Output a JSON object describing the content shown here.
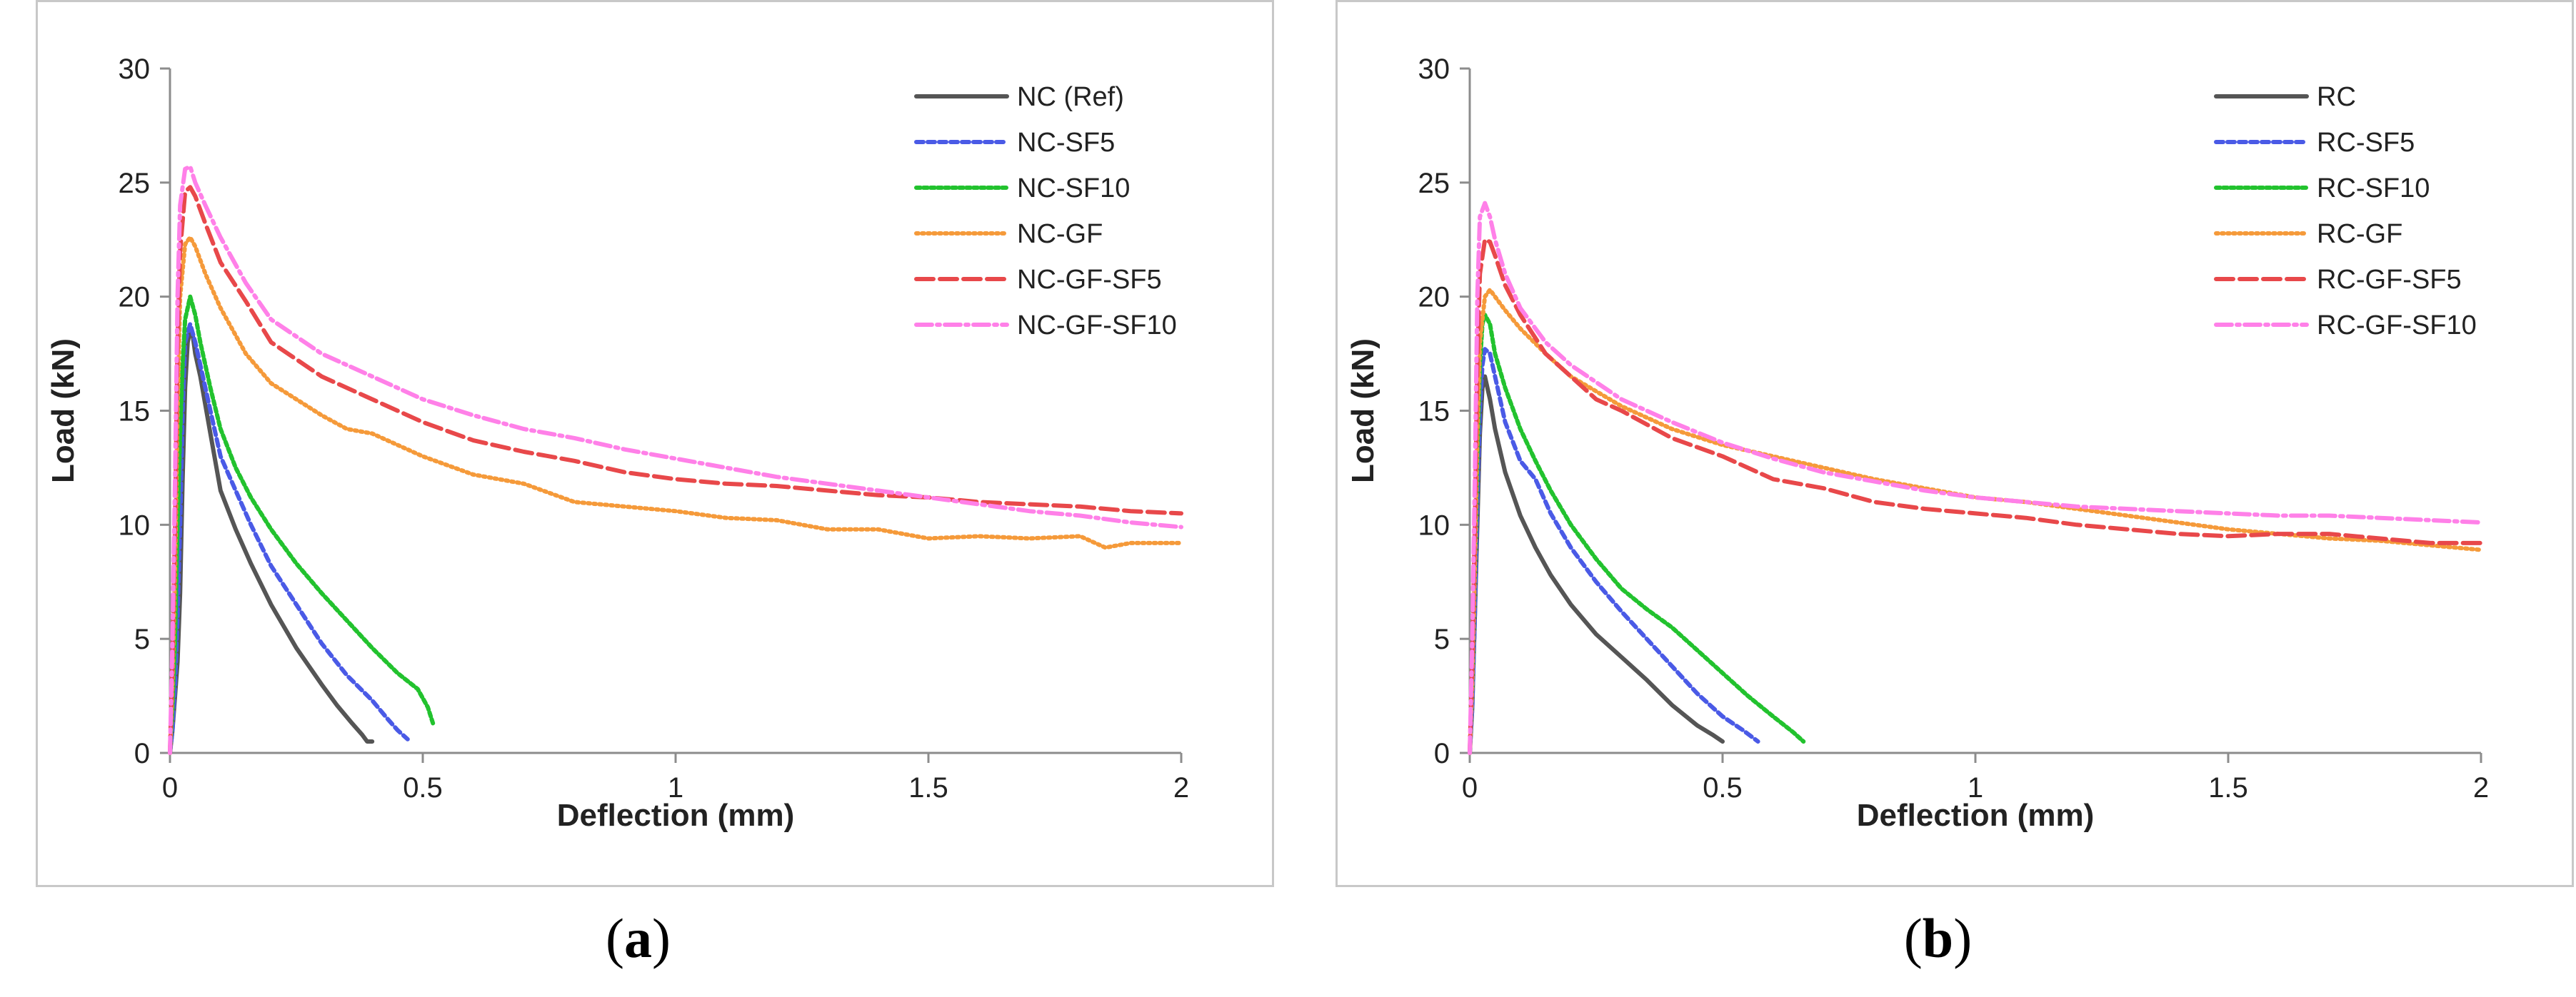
{
  "chart_data": [
    {
      "type": "line",
      "panel_label": "a",
      "caption_open": "(",
      "caption_close": ")",
      "xlabel": "Deflection (mm)",
      "ylabel": "Load (kN)",
      "xlim": [
        0,
        2
      ],
      "ylim": [
        0,
        30
      ],
      "xticks": [
        0,
        0.5,
        1,
        1.5,
        2
      ],
      "xtick_labels": [
        "0",
        "0.5",
        "1",
        "1.5",
        "2"
      ],
      "yticks": [
        0,
        5,
        10,
        15,
        20,
        25,
        30
      ],
      "ytick_labels": [
        "0",
        "5",
        "10",
        "15",
        "20",
        "25",
        "30"
      ],
      "legend_position": "top-right",
      "series": [
        {
          "name": "NC (Ref)",
          "color": "#555555",
          "dash": "solid",
          "x": [
            0,
            0.005,
            0.01,
            0.015,
            0.02,
            0.025,
            0.03,
            0.035,
            0.04,
            0.045,
            0.05,
            0.06,
            0.08,
            0.1,
            0.13,
            0.16,
            0.2,
            0.25,
            0.3,
            0.33,
            0.36,
            0.38,
            0.39,
            0.4
          ],
          "y": [
            0,
            1,
            2.5,
            4,
            7,
            12,
            16,
            18,
            18.5,
            18.3,
            17.5,
            16.5,
            14,
            11.5,
            9.8,
            8.3,
            6.5,
            4.6,
            3,
            2.1,
            1.3,
            0.8,
            0.5,
            0.5
          ]
        },
        {
          "name": "NC-SF5",
          "color": "#4a5ae6",
          "dash": "10,6",
          "x": [
            0,
            0.005,
            0.01,
            0.015,
            0.02,
            0.025,
            0.03,
            0.04,
            0.05,
            0.06,
            0.08,
            0.1,
            0.13,
            0.16,
            0.2,
            0.25,
            0.3,
            0.35,
            0.4,
            0.43,
            0.45,
            0.47
          ],
          "y": [
            0,
            1,
            3,
            6,
            10,
            15,
            18,
            18.8,
            18,
            17,
            15,
            13,
            11.5,
            10,
            8.2,
            6.5,
            4.8,
            3.4,
            2.3,
            1.5,
            1,
            0.6
          ]
        },
        {
          "name": "NC-SF10",
          "color": "#22c22e",
          "dash": "6,4",
          "x": [
            0,
            0.005,
            0.01,
            0.015,
            0.02,
            0.025,
            0.03,
            0.04,
            0.05,
            0.06,
            0.08,
            0.1,
            0.13,
            0.16,
            0.2,
            0.25,
            0.3,
            0.35,
            0.4,
            0.45,
            0.49,
            0.51,
            0.52
          ],
          "y": [
            0,
            2,
            5,
            10,
            14,
            17,
            19,
            20,
            19.2,
            18,
            16,
            14.2,
            12.5,
            11.2,
            9.8,
            8.3,
            7,
            5.8,
            4.6,
            3.5,
            2.8,
            2,
            1.3
          ]
        },
        {
          "name": "NC-GF",
          "color": "#f59a3a",
          "dash": "3,5",
          "x": [
            0,
            0.005,
            0.01,
            0.015,
            0.02,
            0.03,
            0.04,
            0.05,
            0.07,
            0.1,
            0.15,
            0.2,
            0.3,
            0.35,
            0.4,
            0.5,
            0.6,
            0.7,
            0.8,
            0.9,
            1,
            1.1,
            1.2,
            1.3,
            1.4,
            1.5,
            1.6,
            1.7,
            1.8,
            1.85,
            1.9,
            2
          ],
          "y": [
            0,
            3,
            8,
            15,
            20,
            22.3,
            22.6,
            22.2,
            21,
            19.5,
            17.5,
            16.2,
            14.8,
            14.2,
            14,
            13,
            12.2,
            11.8,
            11,
            10.8,
            10.6,
            10.3,
            10.2,
            9.8,
            9.8,
            9.4,
            9.5,
            9.4,
            9.5,
            9,
            9.2,
            9.2
          ]
        },
        {
          "name": "NC-GF-SF5",
          "color": "#e8484a",
          "dash": "24,9",
          "x": [
            0,
            0.005,
            0.01,
            0.015,
            0.02,
            0.03,
            0.04,
            0.05,
            0.07,
            0.1,
            0.15,
            0.2,
            0.3,
            0.4,
            0.5,
            0.6,
            0.7,
            0.8,
            0.9,
            1,
            1.1,
            1.2,
            1.3,
            1.4,
            1.5,
            1.6,
            1.7,
            1.8,
            1.9,
            2
          ],
          "y": [
            0,
            4,
            10,
            18,
            22,
            24.6,
            24.8,
            24.4,
            23.2,
            21.5,
            19.8,
            18,
            16.5,
            15.5,
            14.5,
            13.7,
            13.2,
            12.8,
            12.3,
            12,
            11.8,
            11.7,
            11.5,
            11.3,
            11.2,
            11,
            10.9,
            10.8,
            10.6,
            10.5
          ]
        },
        {
          "name": "NC-GF-SF10",
          "color": "#ff80e8",
          "dash": "22,7,4,7",
          "x": [
            0,
            0.005,
            0.01,
            0.015,
            0.02,
            0.03,
            0.04,
            0.05,
            0.07,
            0.1,
            0.15,
            0.2,
            0.3,
            0.4,
            0.5,
            0.6,
            0.7,
            0.8,
            0.9,
            1,
            1.1,
            1.2,
            1.3,
            1.4,
            1.5,
            1.6,
            1.7,
            1.8,
            1.9,
            2
          ],
          "y": [
            0,
            5,
            12,
            20,
            24,
            25.6,
            25.7,
            25,
            24,
            22.6,
            20.6,
            19,
            17.5,
            16.5,
            15.5,
            14.8,
            14.2,
            13.8,
            13.3,
            12.9,
            12.5,
            12.1,
            11.8,
            11.5,
            11.2,
            10.9,
            10.6,
            10.4,
            10.1,
            9.9
          ]
        }
      ]
    },
    {
      "type": "line",
      "panel_label": "b",
      "caption_open": "(",
      "caption_close": ")",
      "xlabel": "Deflection (mm)",
      "ylabel": "Load (kN)",
      "xlim": [
        0,
        2
      ],
      "ylim": [
        0,
        30
      ],
      "xticks": [
        0,
        0.5,
        1,
        1.5,
        2
      ],
      "xtick_labels": [
        "0",
        "0.5",
        "1",
        "1.5",
        "2"
      ],
      "yticks": [
        0,
        5,
        10,
        15,
        20,
        25,
        30
      ],
      "ytick_labels": [
        "0",
        "5",
        "10",
        "15",
        "20",
        "25",
        "30"
      ],
      "legend_position": "top-right",
      "series": [
        {
          "name": "RC",
          "color": "#555555",
          "dash": "solid",
          "x": [
            0,
            0.005,
            0.01,
            0.015,
            0.02,
            0.025,
            0.03,
            0.04,
            0.05,
            0.07,
            0.1,
            0.13,
            0.16,
            0.2,
            0.25,
            0.3,
            0.35,
            0.4,
            0.45,
            0.48,
            0.5
          ],
          "y": [
            0,
            2,
            6,
            10,
            14,
            16,
            16.5,
            15.5,
            14.2,
            12.3,
            10.4,
            9,
            7.8,
            6.5,
            5.2,
            4.2,
            3.2,
            2.1,
            1.2,
            0.8,
            0.5
          ]
        },
        {
          "name": "RC-SF5",
          "color": "#4a5ae6",
          "dash": "10,6",
          "x": [
            0,
            0.005,
            0.01,
            0.015,
            0.02,
            0.025,
            0.03,
            0.04,
            0.05,
            0.07,
            0.1,
            0.13,
            0.16,
            0.2,
            0.25,
            0.3,
            0.35,
            0.4,
            0.45,
            0.5,
            0.54,
            0.57
          ],
          "y": [
            0,
            2,
            6,
            11,
            15,
            17,
            17.7,
            17.5,
            16.5,
            14.5,
            12.8,
            12,
            10.5,
            9,
            7.5,
            6.2,
            5,
            3.8,
            2.6,
            1.6,
            1,
            0.5
          ]
        },
        {
          "name": "RC-SF10",
          "color": "#22c22e",
          "dash": "6,4",
          "x": [
            0,
            0.005,
            0.01,
            0.015,
            0.02,
            0.025,
            0.03,
            0.04,
            0.05,
            0.07,
            0.1,
            0.13,
            0.16,
            0.2,
            0.25,
            0.3,
            0.35,
            0.4,
            0.45,
            0.5,
            0.55,
            0.6,
            0.64,
            0.66
          ],
          "y": [
            0,
            3,
            8,
            13,
            17,
            18.8,
            19.2,
            18.8,
            17.5,
            16,
            14.2,
            12.8,
            11.5,
            10,
            8.5,
            7.2,
            6.3,
            5.5,
            4.5,
            3.5,
            2.5,
            1.6,
            0.9,
            0.5
          ]
        },
        {
          "name": "RC-GF",
          "color": "#f59a3a",
          "dash": "3,5",
          "x": [
            0,
            0.005,
            0.01,
            0.015,
            0.02,
            0.03,
            0.04,
            0.05,
            0.07,
            0.1,
            0.15,
            0.2,
            0.3,
            0.4,
            0.5,
            0.6,
            0.7,
            0.8,
            0.9,
            1,
            1.1,
            1.2,
            1.3,
            1.4,
            1.5,
            1.6,
            1.7,
            1.8,
            1.9,
            2
          ],
          "y": [
            0,
            3,
            8,
            14,
            18,
            20,
            20.3,
            20,
            19.4,
            18.6,
            17.5,
            16.5,
            15.2,
            14.2,
            13.5,
            13,
            12.5,
            12,
            11.6,
            11.2,
            11,
            10.7,
            10.4,
            10.1,
            9.8,
            9.6,
            9.4,
            9.3,
            9.1,
            8.9
          ]
        },
        {
          "name": "RC-GF-SF5",
          "color": "#e8484a",
          "dash": "24,9",
          "x": [
            0,
            0.005,
            0.01,
            0.015,
            0.02,
            0.03,
            0.04,
            0.05,
            0.07,
            0.1,
            0.15,
            0.2,
            0.25,
            0.3,
            0.4,
            0.5,
            0.6,
            0.7,
            0.8,
            0.9,
            1,
            1.1,
            1.2,
            1.3,
            1.4,
            1.5,
            1.6,
            1.7,
            1.8,
            1.9,
            2
          ],
          "y": [
            0,
            4,
            10,
            17,
            21,
            22.5,
            22.4,
            21.8,
            20.5,
            19.2,
            17.5,
            16.5,
            15.5,
            15,
            13.8,
            13,
            12,
            11.6,
            11,
            10.7,
            10.5,
            10.3,
            10,
            9.8,
            9.6,
            9.5,
            9.6,
            9.6,
            9.4,
            9.2,
            9.2
          ]
        },
        {
          "name": "RC-GF-SF10",
          "color": "#ff80e8",
          "dash": "22,7,4,7",
          "x": [
            0,
            0.005,
            0.01,
            0.015,
            0.02,
            0.03,
            0.04,
            0.05,
            0.07,
            0.1,
            0.15,
            0.2,
            0.3,
            0.4,
            0.5,
            0.6,
            0.7,
            0.8,
            0.9,
            1,
            1.1,
            1.2,
            1.3,
            1.4,
            1.5,
            1.6,
            1.7,
            1.8,
            1.9,
            2
          ],
          "y": [
            0,
            5,
            12,
            20,
            23.5,
            24.1,
            23.5,
            22.5,
            21,
            19.5,
            18,
            17,
            15.5,
            14.5,
            13.6,
            12.9,
            12.3,
            11.9,
            11.5,
            11.2,
            11,
            10.8,
            10.7,
            10.6,
            10.5,
            10.4,
            10.4,
            10.3,
            10.2,
            10.1
          ]
        }
      ]
    }
  ]
}
